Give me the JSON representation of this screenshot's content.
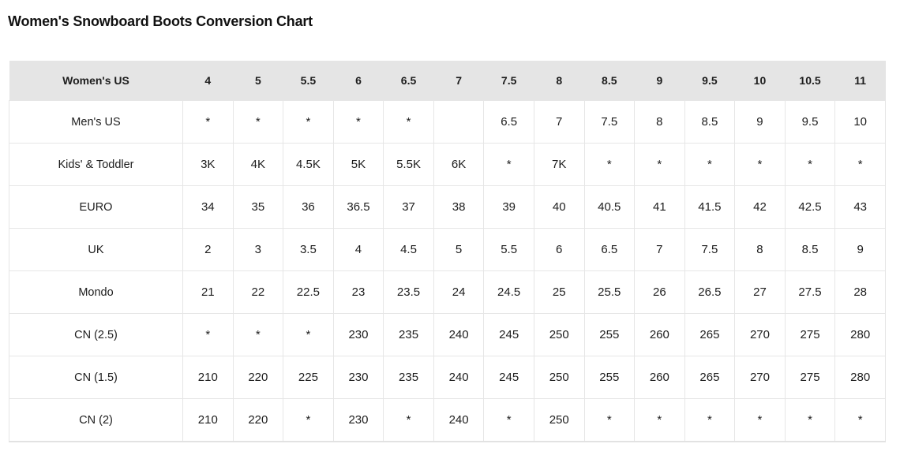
{
  "title": "Women's Snowboard Boots Conversion Chart",
  "colors": {
    "header_background": "#e5e5e5",
    "cell_border": "#e6e6e6",
    "text": "#1d1d1d",
    "page_background": "#ffffff"
  },
  "chart_data": {
    "type": "table",
    "title": "Women's Snowboard Boots Conversion Chart",
    "header": [
      "Women's US",
      "4",
      "5",
      "5.5",
      "6",
      "6.5",
      "7",
      "7.5",
      "8",
      "8.5",
      "9",
      "9.5",
      "10",
      "10.5",
      "11"
    ],
    "rows": [
      {
        "label": "Men's US",
        "values": [
          "*",
          "*",
          "*",
          "*",
          "*",
          "",
          "6.5",
          "7",
          "7.5",
          "8",
          "8.5",
          "9",
          "9.5",
          "10"
        ]
      },
      {
        "label": "Kids' & Toddler",
        "values": [
          "3K",
          "4K",
          "4.5K",
          "5K",
          "5.5K",
          "6K",
          "*",
          "7K",
          "*",
          "*",
          "*",
          "*",
          "*",
          "*"
        ]
      },
      {
        "label": "EURO",
        "values": [
          "34",
          "35",
          "36",
          "36.5",
          "37",
          "38",
          "39",
          "40",
          "40.5",
          "41",
          "41.5",
          "42",
          "42.5",
          "43"
        ]
      },
      {
        "label": "UK",
        "values": [
          "2",
          "3",
          "3.5",
          "4",
          "4.5",
          "5",
          "5.5",
          "6",
          "6.5",
          "7",
          "7.5",
          "8",
          "8.5",
          "9"
        ]
      },
      {
        "label": "Mondo",
        "values": [
          "21",
          "22",
          "22.5",
          "23",
          "23.5",
          "24",
          "24.5",
          "25",
          "25.5",
          "26",
          "26.5",
          "27",
          "27.5",
          "28"
        ]
      },
      {
        "label": "CN (2.5)",
        "values": [
          "*",
          "*",
          "*",
          "230",
          "235",
          "240",
          "245",
          "250",
          "255",
          "260",
          "265",
          "270",
          "275",
          "280"
        ]
      },
      {
        "label": "CN (1.5)",
        "values": [
          "210",
          "220",
          "225",
          "230",
          "235",
          "240",
          "245",
          "250",
          "255",
          "260",
          "265",
          "270",
          "275",
          "280"
        ]
      },
      {
        "label": "CN (2)",
        "values": [
          "210",
          "220",
          "*",
          "230",
          "*",
          "240",
          "*",
          "250",
          "*",
          "*",
          "*",
          "*",
          "*",
          "*"
        ]
      }
    ]
  }
}
